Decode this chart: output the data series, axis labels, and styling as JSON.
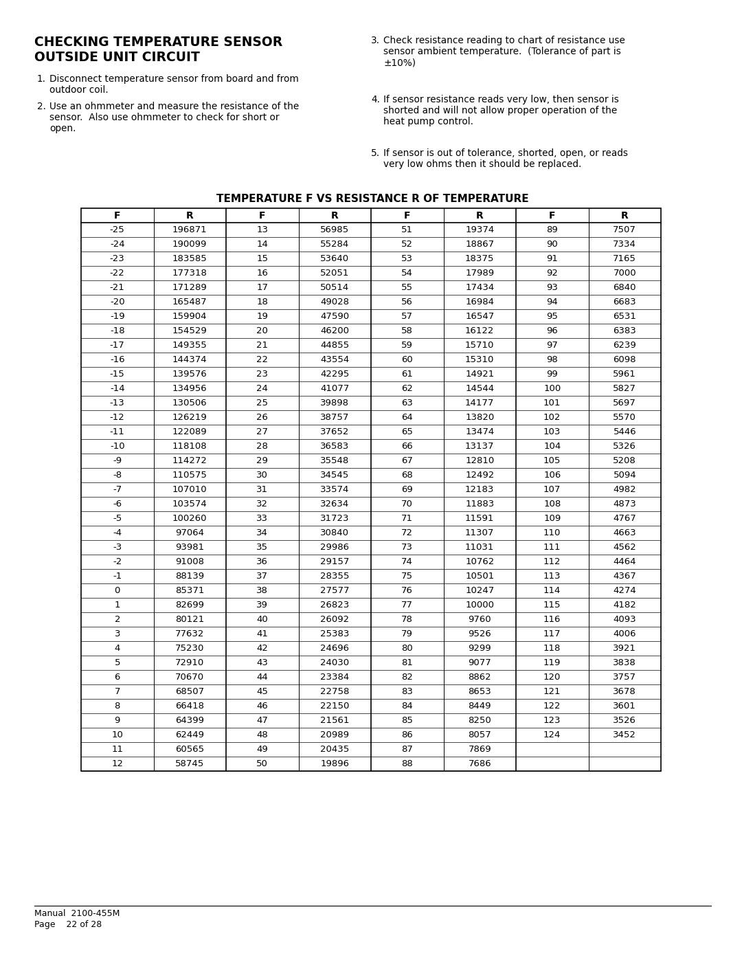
{
  "title_line1": "CHECKING TEMPERATURE SENSOR",
  "title_line2": "OUTSIDE UNIT CIRCUIT",
  "instr1_num": "1.",
  "instr1_text": "Disconnect temperature sensor from board and from\noutdoor coil.",
  "instr2_num": "2.",
  "instr2_text": "Use an ohmmeter and measure the resistance of the\nsensor.  Also use ohmmeter to check for short or\nopen.",
  "instr3_num": "3.",
  "instr3_text": "Check resistance reading to chart of resistance use\nsensor ambient temperature.  (Tolerance of part is\n±10%)",
  "instr4_num": "4.",
  "instr4_text": "If sensor resistance reads very low, then sensor is\nshorted and will not allow proper operation of the\nheat pump control.",
  "instr5_num": "5.",
  "instr5_text": "If sensor is out of tolerance, shorted, open, or reads\nvery low ohms then it should be replaced.",
  "table_title": "TEMPERATURE F VS RESISTANCE R OF TEMPERATURE",
  "footer_line1": "Manual  2100-455M",
  "footer_line2": "Page    22 of 28",
  "data": [
    [
      -25,
      196871,
      13,
      56985,
      51,
      19374,
      89,
      7507
    ],
    [
      -24,
      190099,
      14,
      55284,
      52,
      18867,
      90,
      7334
    ],
    [
      -23,
      183585,
      15,
      53640,
      53,
      18375,
      91,
      7165
    ],
    [
      -22,
      177318,
      16,
      52051,
      54,
      17989,
      92,
      7000
    ],
    [
      -21,
      171289,
      17,
      50514,
      55,
      17434,
      93,
      6840
    ],
    [
      -20,
      165487,
      18,
      49028,
      56,
      16984,
      94,
      6683
    ],
    [
      -19,
      159904,
      19,
      47590,
      57,
      16547,
      95,
      6531
    ],
    [
      -18,
      154529,
      20,
      46200,
      58,
      16122,
      96,
      6383
    ],
    [
      -17,
      149355,
      21,
      44855,
      59,
      15710,
      97,
      6239
    ],
    [
      -16,
      144374,
      22,
      43554,
      60,
      15310,
      98,
      6098
    ],
    [
      -15,
      139576,
      23,
      42295,
      61,
      14921,
      99,
      5961
    ],
    [
      -14,
      134956,
      24,
      41077,
      62,
      14544,
      100,
      5827
    ],
    [
      -13,
      130506,
      25,
      39898,
      63,
      14177,
      101,
      5697
    ],
    [
      -12,
      126219,
      26,
      38757,
      64,
      13820,
      102,
      5570
    ],
    [
      -11,
      122089,
      27,
      37652,
      65,
      13474,
      103,
      5446
    ],
    [
      -10,
      118108,
      28,
      36583,
      66,
      13137,
      104,
      5326
    ],
    [
      -9,
      114272,
      29,
      35548,
      67,
      12810,
      105,
      5208
    ],
    [
      -8,
      110575,
      30,
      34545,
      68,
      12492,
      106,
      5094
    ],
    [
      -7,
      107010,
      31,
      33574,
      69,
      12183,
      107,
      4982
    ],
    [
      -6,
      103574,
      32,
      32634,
      70,
      11883,
      108,
      4873
    ],
    [
      -5,
      100260,
      33,
      31723,
      71,
      11591,
      109,
      4767
    ],
    [
      -4,
      97064,
      34,
      30840,
      72,
      11307,
      110,
      4663
    ],
    [
      -3,
      93981,
      35,
      29986,
      73,
      11031,
      111,
      4562
    ],
    [
      -2,
      91008,
      36,
      29157,
      74,
      10762,
      112,
      4464
    ],
    [
      -1,
      88139,
      37,
      28355,
      75,
      10501,
      113,
      4367
    ],
    [
      0,
      85371,
      38,
      27577,
      76,
      10247,
      114,
      4274
    ],
    [
      1,
      82699,
      39,
      26823,
      77,
      10000,
      115,
      4182
    ],
    [
      2,
      80121,
      40,
      26092,
      78,
      9760,
      116,
      4093
    ],
    [
      3,
      77632,
      41,
      25383,
      79,
      9526,
      117,
      4006
    ],
    [
      4,
      75230,
      42,
      24696,
      80,
      9299,
      118,
      3921
    ],
    [
      5,
      72910,
      43,
      24030,
      81,
      9077,
      119,
      3838
    ],
    [
      6,
      70670,
      44,
      23384,
      82,
      8862,
      120,
      3757
    ],
    [
      7,
      68507,
      45,
      22758,
      83,
      8653,
      121,
      3678
    ],
    [
      8,
      66418,
      46,
      22150,
      84,
      8449,
      122,
      3601
    ],
    [
      9,
      64399,
      47,
      21561,
      85,
      8250,
      123,
      3526
    ],
    [
      10,
      62449,
      48,
      20989,
      86,
      8057,
      124,
      3452
    ],
    [
      11,
      60565,
      49,
      20435,
      87,
      7869,
      null,
      null
    ],
    [
      12,
      58745,
      50,
      19896,
      88,
      7686,
      null,
      null
    ]
  ]
}
